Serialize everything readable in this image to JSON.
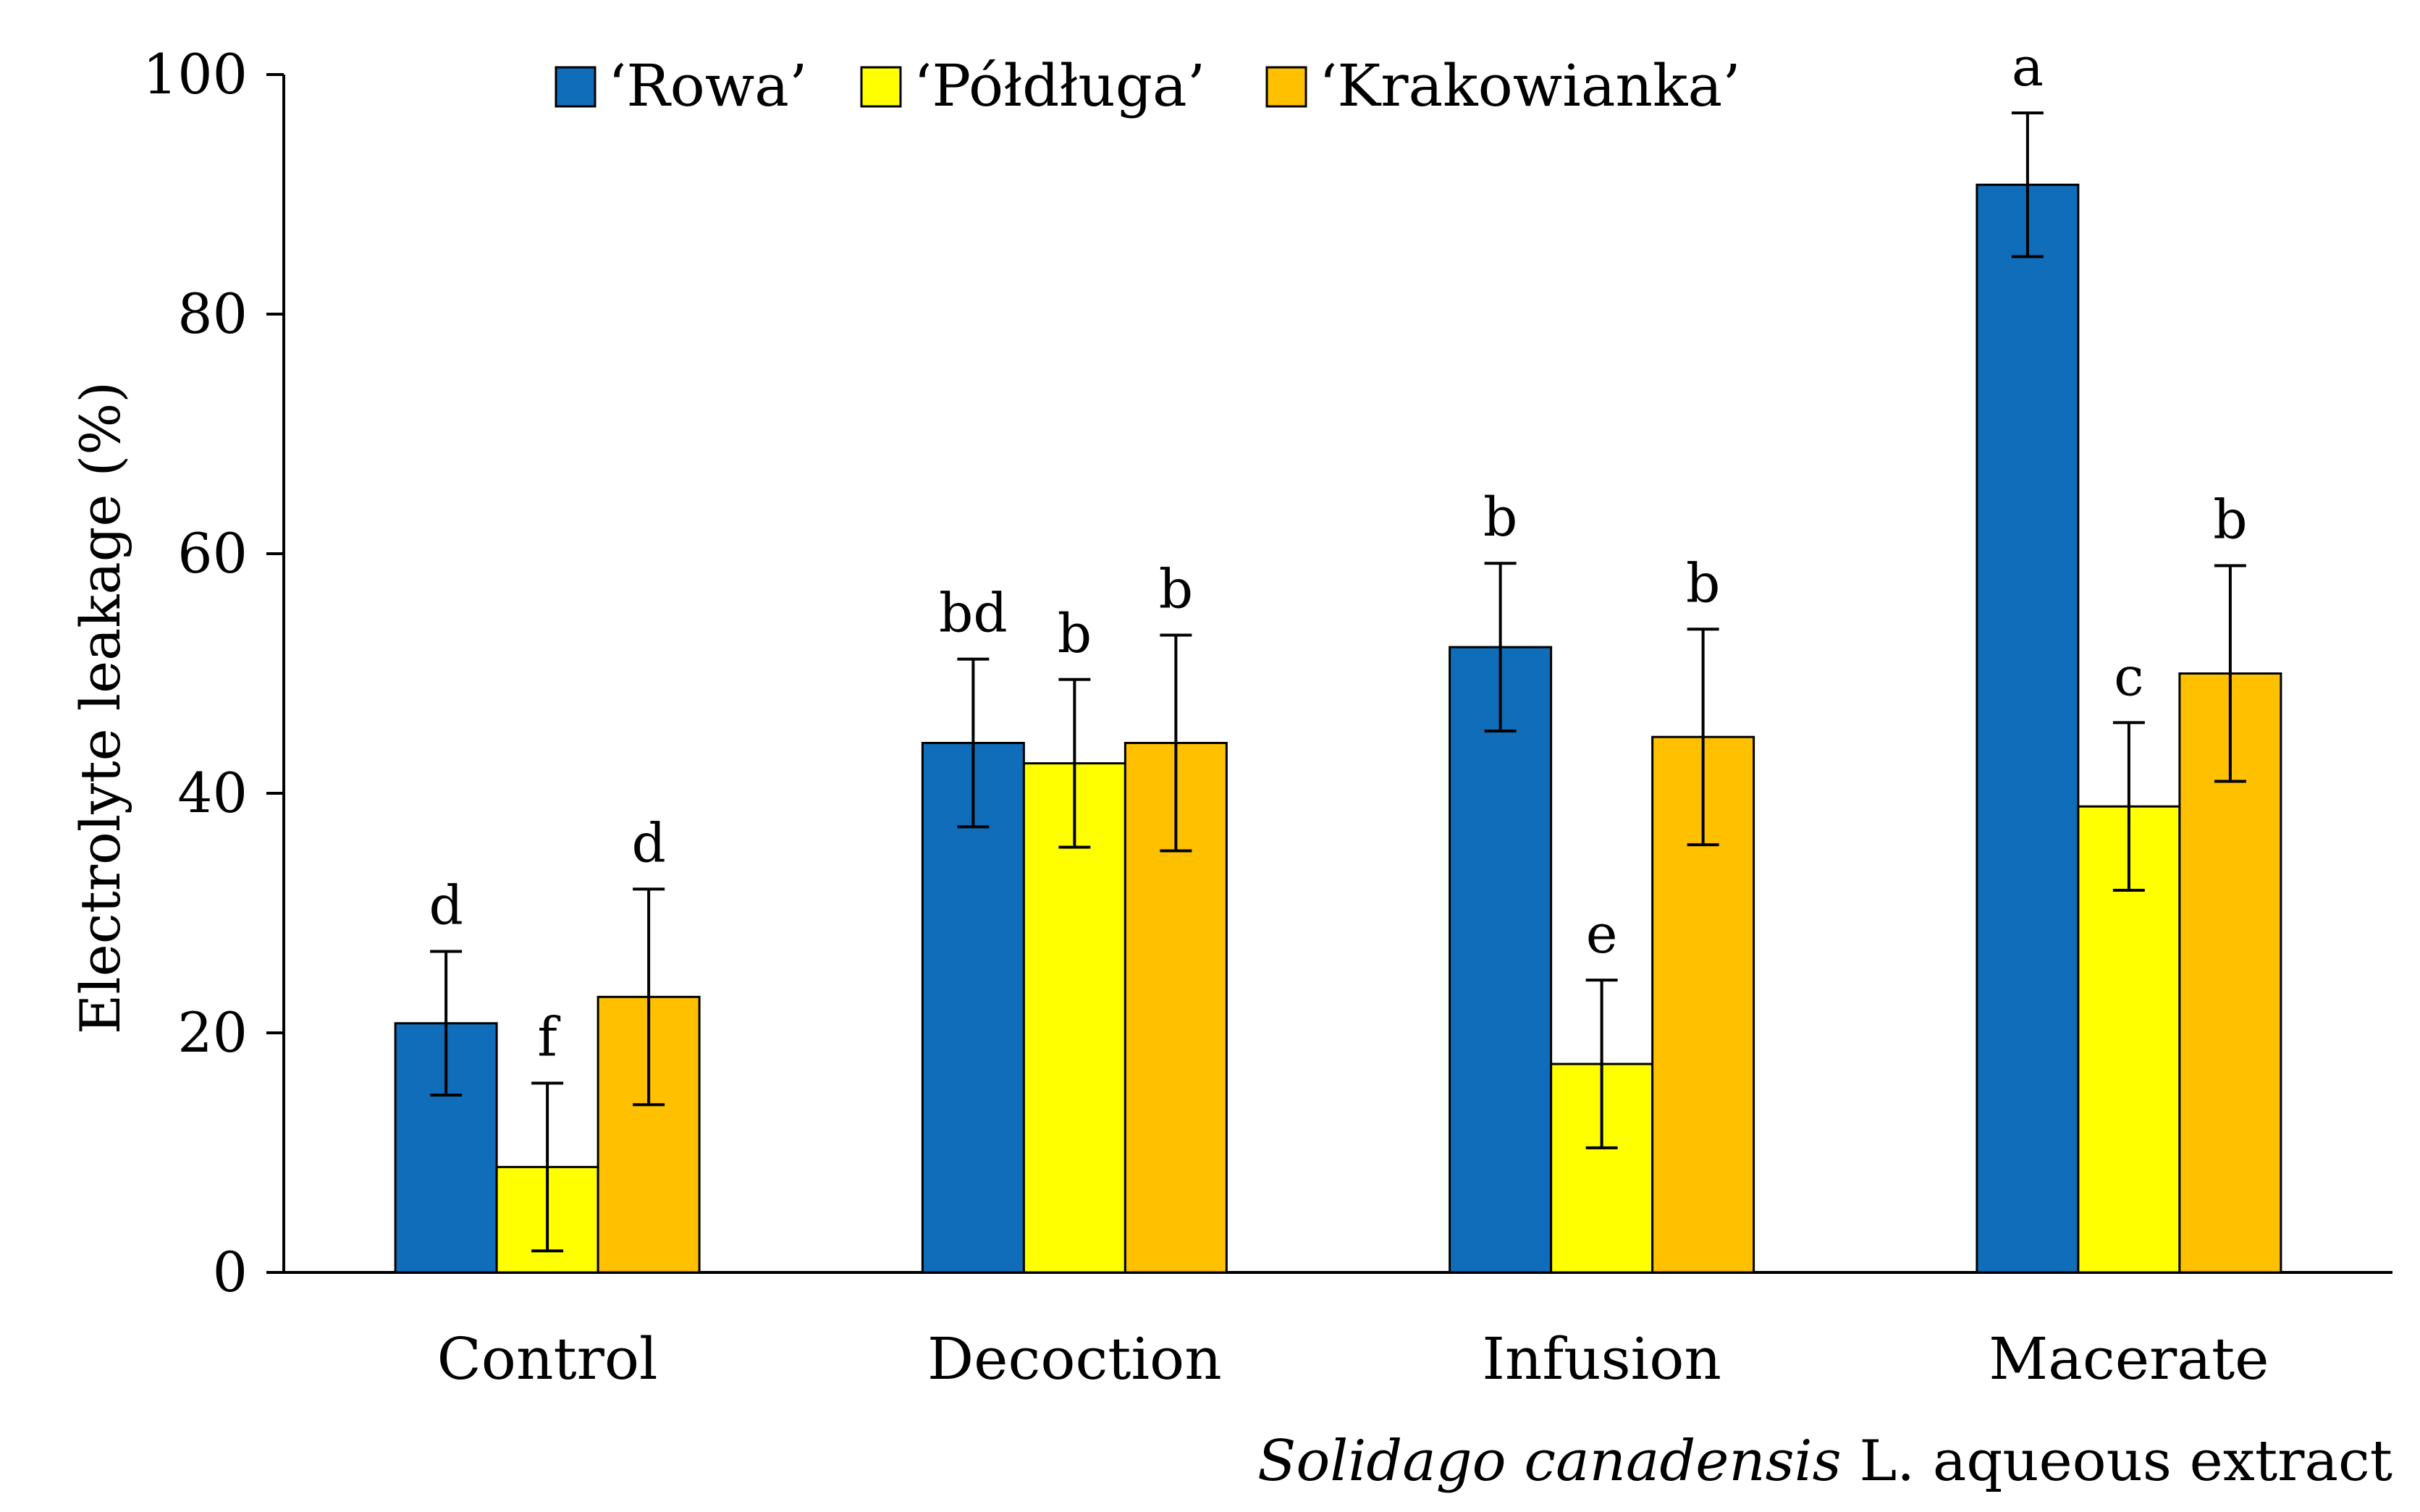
{
  "chart_data": {
    "type": "bar",
    "ylabel": "Electrolyte leakage (%)",
    "xlabel_italic": "Solidago canadensis",
    "xlabel_rest": " L. aqueous extract",
    "ylim": [
      0,
      100
    ],
    "yticks": [
      "0",
      "20",
      "40",
      "60",
      "80",
      "100"
    ],
    "grid": false,
    "legend_position": "top",
    "categories": [
      "Control",
      "Decoction",
      "Infusion",
      "Macerate"
    ],
    "series": [
      {
        "name": "‘Rowa’",
        "color": "#0F6DBA",
        "values": [
          20.8,
          44.2,
          52.2,
          90.8
        ],
        "errors": [
          6.0,
          7.0,
          7.0,
          6.0
        ],
        "letters": [
          "d",
          "bd",
          "b",
          "a"
        ]
      },
      {
        "name": "‘Półdługa’",
        "color": "#FFFF00",
        "values": [
          8.8,
          42.5,
          17.4,
          38.9
        ],
        "errors": [
          7.0,
          7.0,
          7.0,
          7.0
        ],
        "letters": [
          "f",
          "b",
          "e",
          "c"
        ]
      },
      {
        "name": "‘Krakowianka’",
        "color": "#FFC000",
        "values": [
          23.0,
          44.2,
          44.7,
          50.0
        ],
        "errors": [
          9.0,
          9.0,
          9.0,
          9.0
        ],
        "letters": [
          "d",
          "b",
          "b",
          "b"
        ]
      }
    ]
  }
}
